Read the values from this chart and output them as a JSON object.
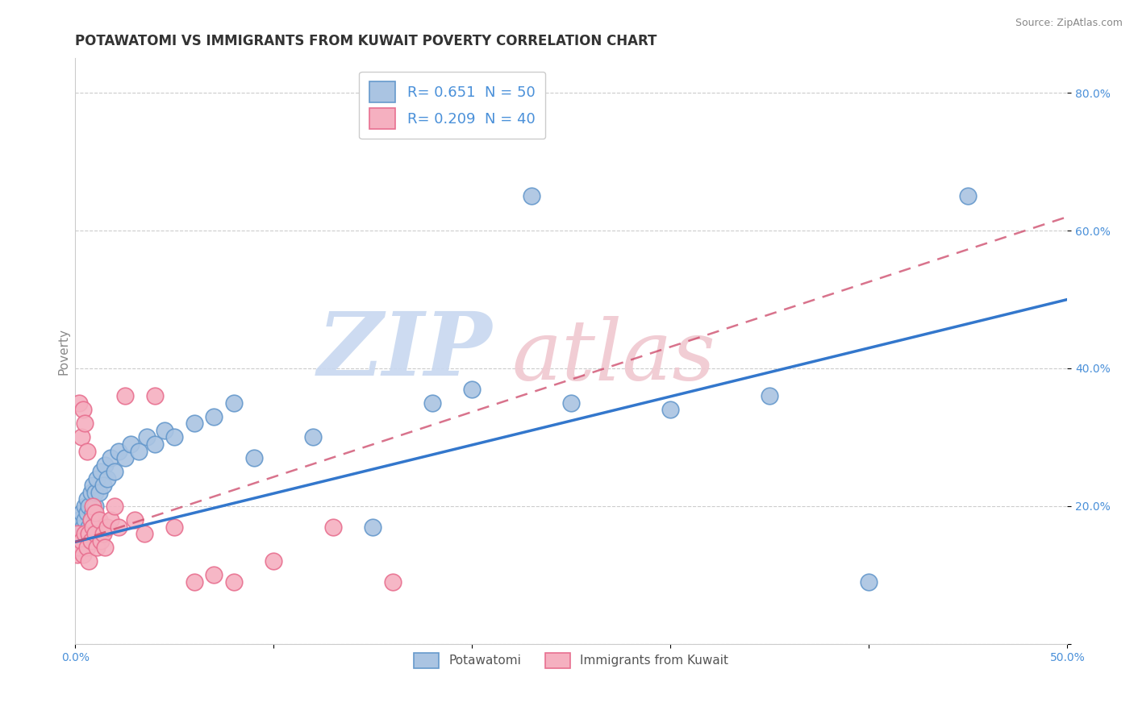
{
  "title": "POTAWATOMI VS IMMIGRANTS FROM KUWAIT POVERTY CORRELATION CHART",
  "source_text": "Source: ZipAtlas.com",
  "ylabel": "Poverty",
  "xlim": [
    0.0,
    0.5
  ],
  "ylim": [
    0.0,
    0.85
  ],
  "xticks": [
    0.0,
    0.1,
    0.2,
    0.3,
    0.4,
    0.5
  ],
  "xticklabels": [
    "0.0%",
    "",
    "",
    "",
    "",
    "50.0%"
  ],
  "yticks": [
    0.0,
    0.2,
    0.4,
    0.6,
    0.8
  ],
  "yticklabels": [
    "",
    "20.0%",
    "40.0%",
    "60.0%",
    "80.0%"
  ],
  "series1_name": "Potawatomi",
  "series1_R": 0.651,
  "series1_N": 50,
  "series1_color": "#aac4e2",
  "series1_edge": "#6699cc",
  "series2_name": "Immigrants from Kuwait",
  "series2_R": 0.209,
  "series2_N": 40,
  "series2_color": "#f5b0c0",
  "series2_edge": "#e87090",
  "trend1_color": "#3377cc",
  "trend2_color": "#cc4466",
  "background_color": "#ffffff",
  "grid_color": "#cccccc",
  "watermark_zip_color": "#c8d8f0",
  "watermark_atlas_color": "#f0c8d0",
  "title_color": "#333333",
  "axis_tick_color": "#4a90d9",
  "ylabel_color": "#888888",
  "source_color": "#888888",
  "series1_x": [
    0.001,
    0.002,
    0.002,
    0.003,
    0.003,
    0.004,
    0.004,
    0.005,
    0.005,
    0.005,
    0.006,
    0.006,
    0.007,
    0.007,
    0.008,
    0.008,
    0.009,
    0.009,
    0.01,
    0.01,
    0.011,
    0.012,
    0.013,
    0.014,
    0.015,
    0.016,
    0.018,
    0.02,
    0.022,
    0.025,
    0.028,
    0.032,
    0.036,
    0.04,
    0.045,
    0.05,
    0.06,
    0.07,
    0.08,
    0.09,
    0.12,
    0.15,
    0.18,
    0.2,
    0.23,
    0.25,
    0.3,
    0.35,
    0.4,
    0.45
  ],
  "series1_y": [
    0.16,
    0.18,
    0.14,
    0.19,
    0.16,
    0.17,
    0.15,
    0.18,
    0.2,
    0.16,
    0.19,
    0.21,
    0.17,
    0.2,
    0.22,
    0.18,
    0.19,
    0.23,
    0.2,
    0.22,
    0.24,
    0.22,
    0.25,
    0.23,
    0.26,
    0.24,
    0.27,
    0.25,
    0.28,
    0.27,
    0.29,
    0.28,
    0.3,
    0.29,
    0.31,
    0.3,
    0.32,
    0.33,
    0.35,
    0.27,
    0.3,
    0.17,
    0.35,
    0.37,
    0.65,
    0.35,
    0.34,
    0.36,
    0.09,
    0.65
  ],
  "series2_x": [
    0.001,
    0.001,
    0.002,
    0.002,
    0.003,
    0.003,
    0.004,
    0.004,
    0.005,
    0.005,
    0.006,
    0.006,
    0.007,
    0.007,
    0.008,
    0.008,
    0.009,
    0.009,
    0.01,
    0.01,
    0.011,
    0.012,
    0.013,
    0.014,
    0.015,
    0.016,
    0.018,
    0.02,
    0.022,
    0.025,
    0.03,
    0.035,
    0.04,
    0.05,
    0.06,
    0.07,
    0.08,
    0.1,
    0.13,
    0.16
  ],
  "series2_y": [
    0.16,
    0.13,
    0.35,
    0.14,
    0.3,
    0.15,
    0.34,
    0.13,
    0.32,
    0.16,
    0.14,
    0.28,
    0.16,
    0.12,
    0.18,
    0.15,
    0.2,
    0.17,
    0.19,
    0.16,
    0.14,
    0.18,
    0.15,
    0.16,
    0.14,
    0.17,
    0.18,
    0.2,
    0.17,
    0.36,
    0.18,
    0.16,
    0.36,
    0.17,
    0.09,
    0.1,
    0.09,
    0.12,
    0.17,
    0.09
  ],
  "trend1_x0": 0.0,
  "trend1_y0": 0.148,
  "trend1_x1": 0.5,
  "trend1_y1": 0.5,
  "trend2_x0": 0.0,
  "trend2_y0": 0.148,
  "trend2_x1": 0.5,
  "trend2_y1": 0.62
}
